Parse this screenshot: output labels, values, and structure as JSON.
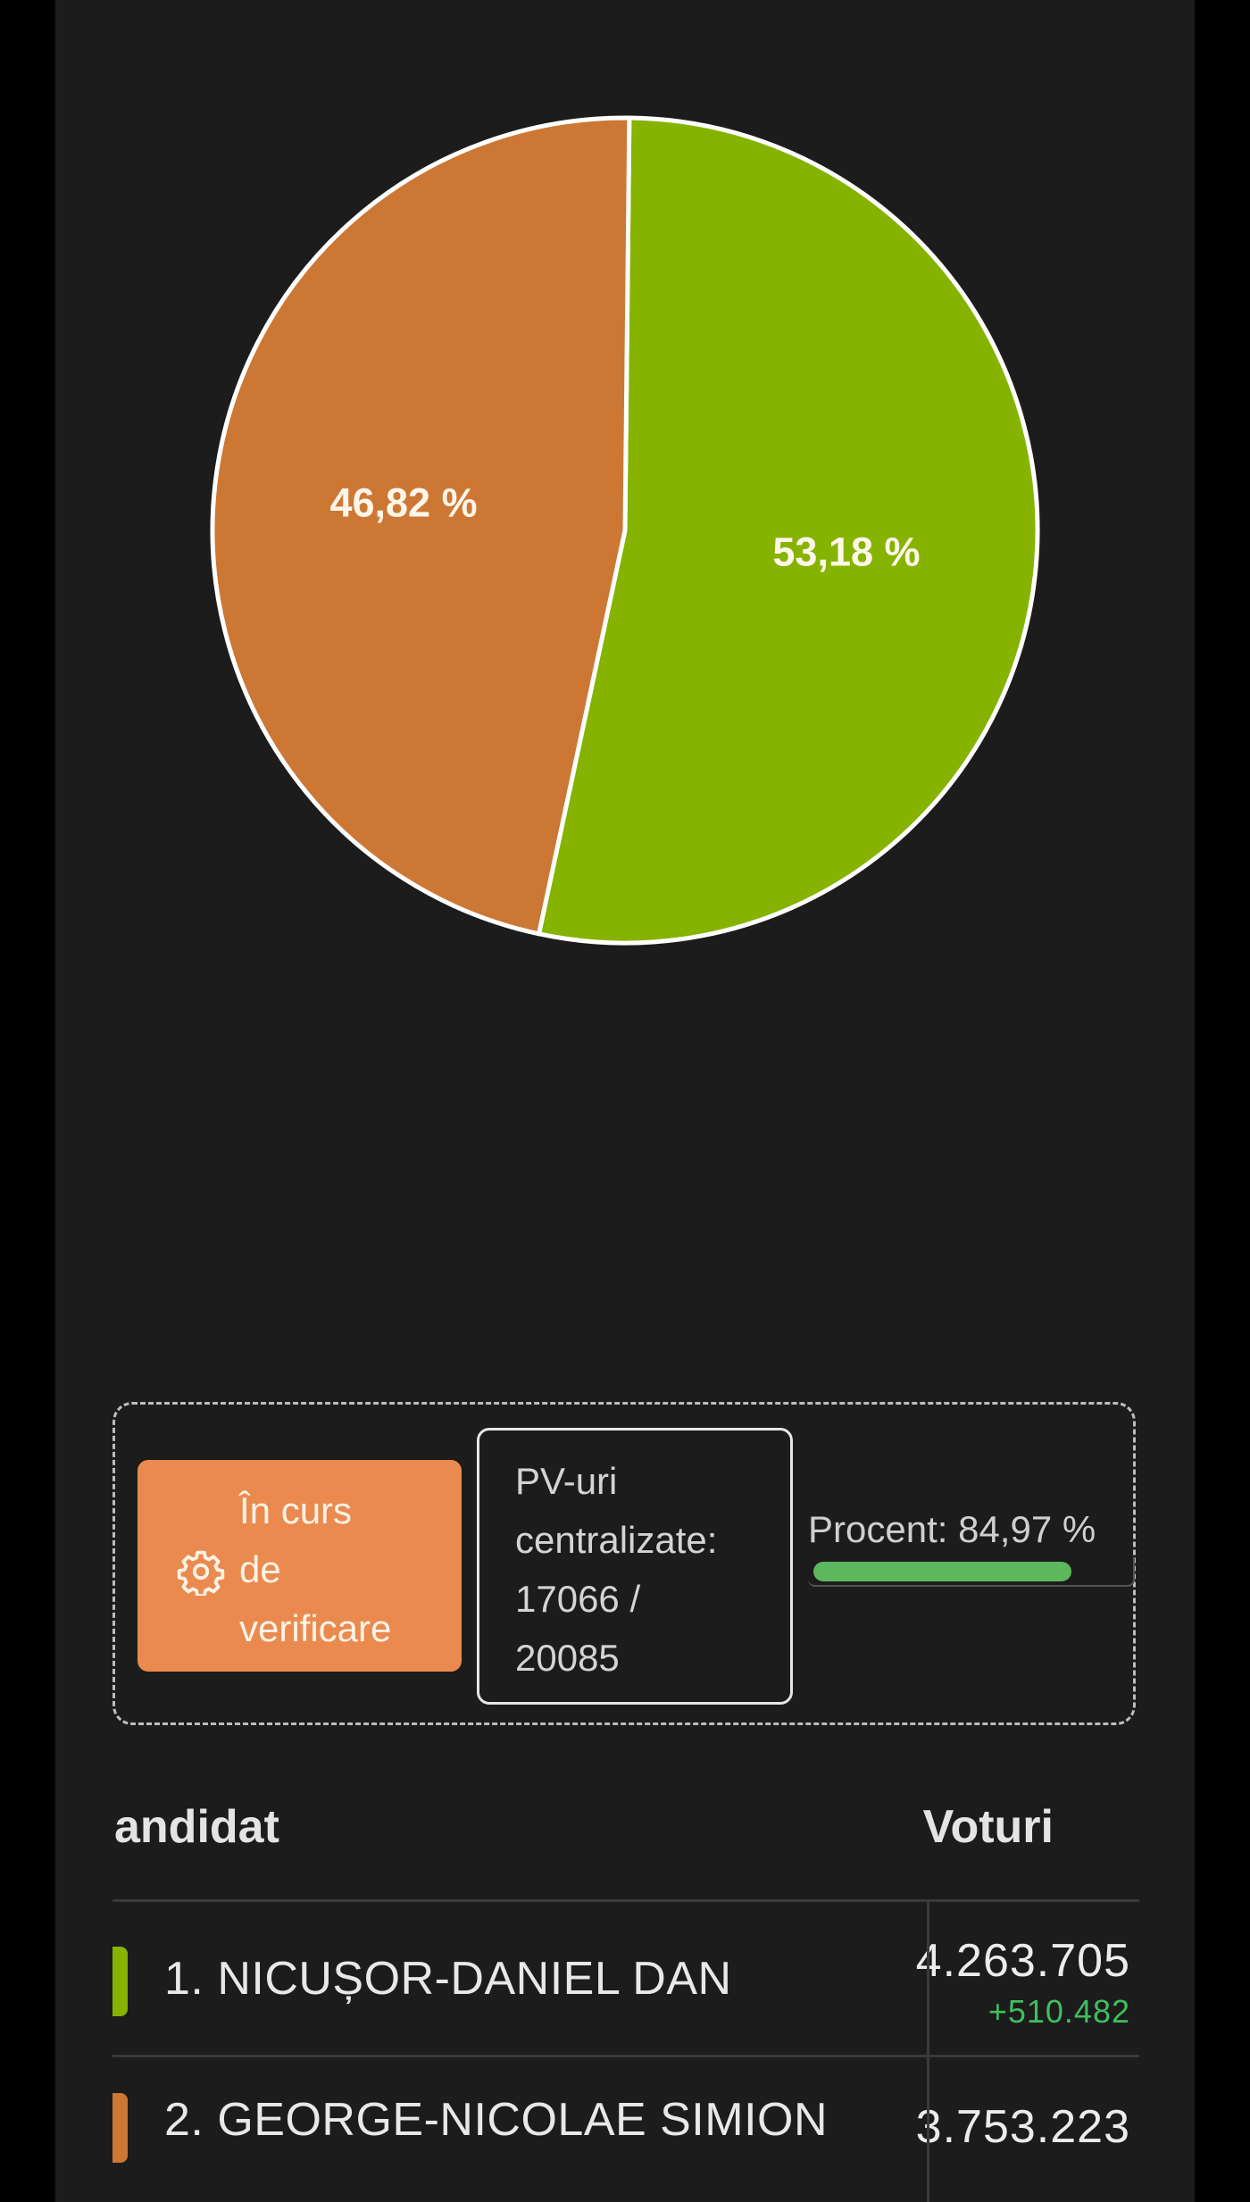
{
  "chart_data": {
    "type": "pie",
    "slices": [
      {
        "label": "53,18 %",
        "value": 53.18,
        "color": "#85b300"
      },
      {
        "label": "46,82 %",
        "value": 46.82,
        "color": "#cd7734"
      }
    ],
    "slice_border_color": "#ffffff"
  },
  "status": {
    "badge_lines": [
      "În curs",
      "de",
      "verificare"
    ],
    "badge_icon": "gear-icon",
    "badge_color": "#ea8a4f",
    "pv_lines": [
      "PV-uri",
      "centralizate:",
      "17066 /",
      "20085"
    ],
    "percent_label": "Procent: 84,97 %",
    "progress_fraction": 0.8497,
    "progress_color": "#5cb85c"
  },
  "table": {
    "headers": {
      "candidate": "andidat",
      "votes": "Voturi"
    },
    "rows": [
      {
        "name": "1. NICUȘOR-DANIEL DAN",
        "votes": "4.263.705",
        "delta": "+510.482",
        "color": "#85b300"
      },
      {
        "name": "2. GEORGE-NICOLAE SIMION",
        "votes": "3.753.223",
        "color": "#cd7734"
      }
    ]
  }
}
